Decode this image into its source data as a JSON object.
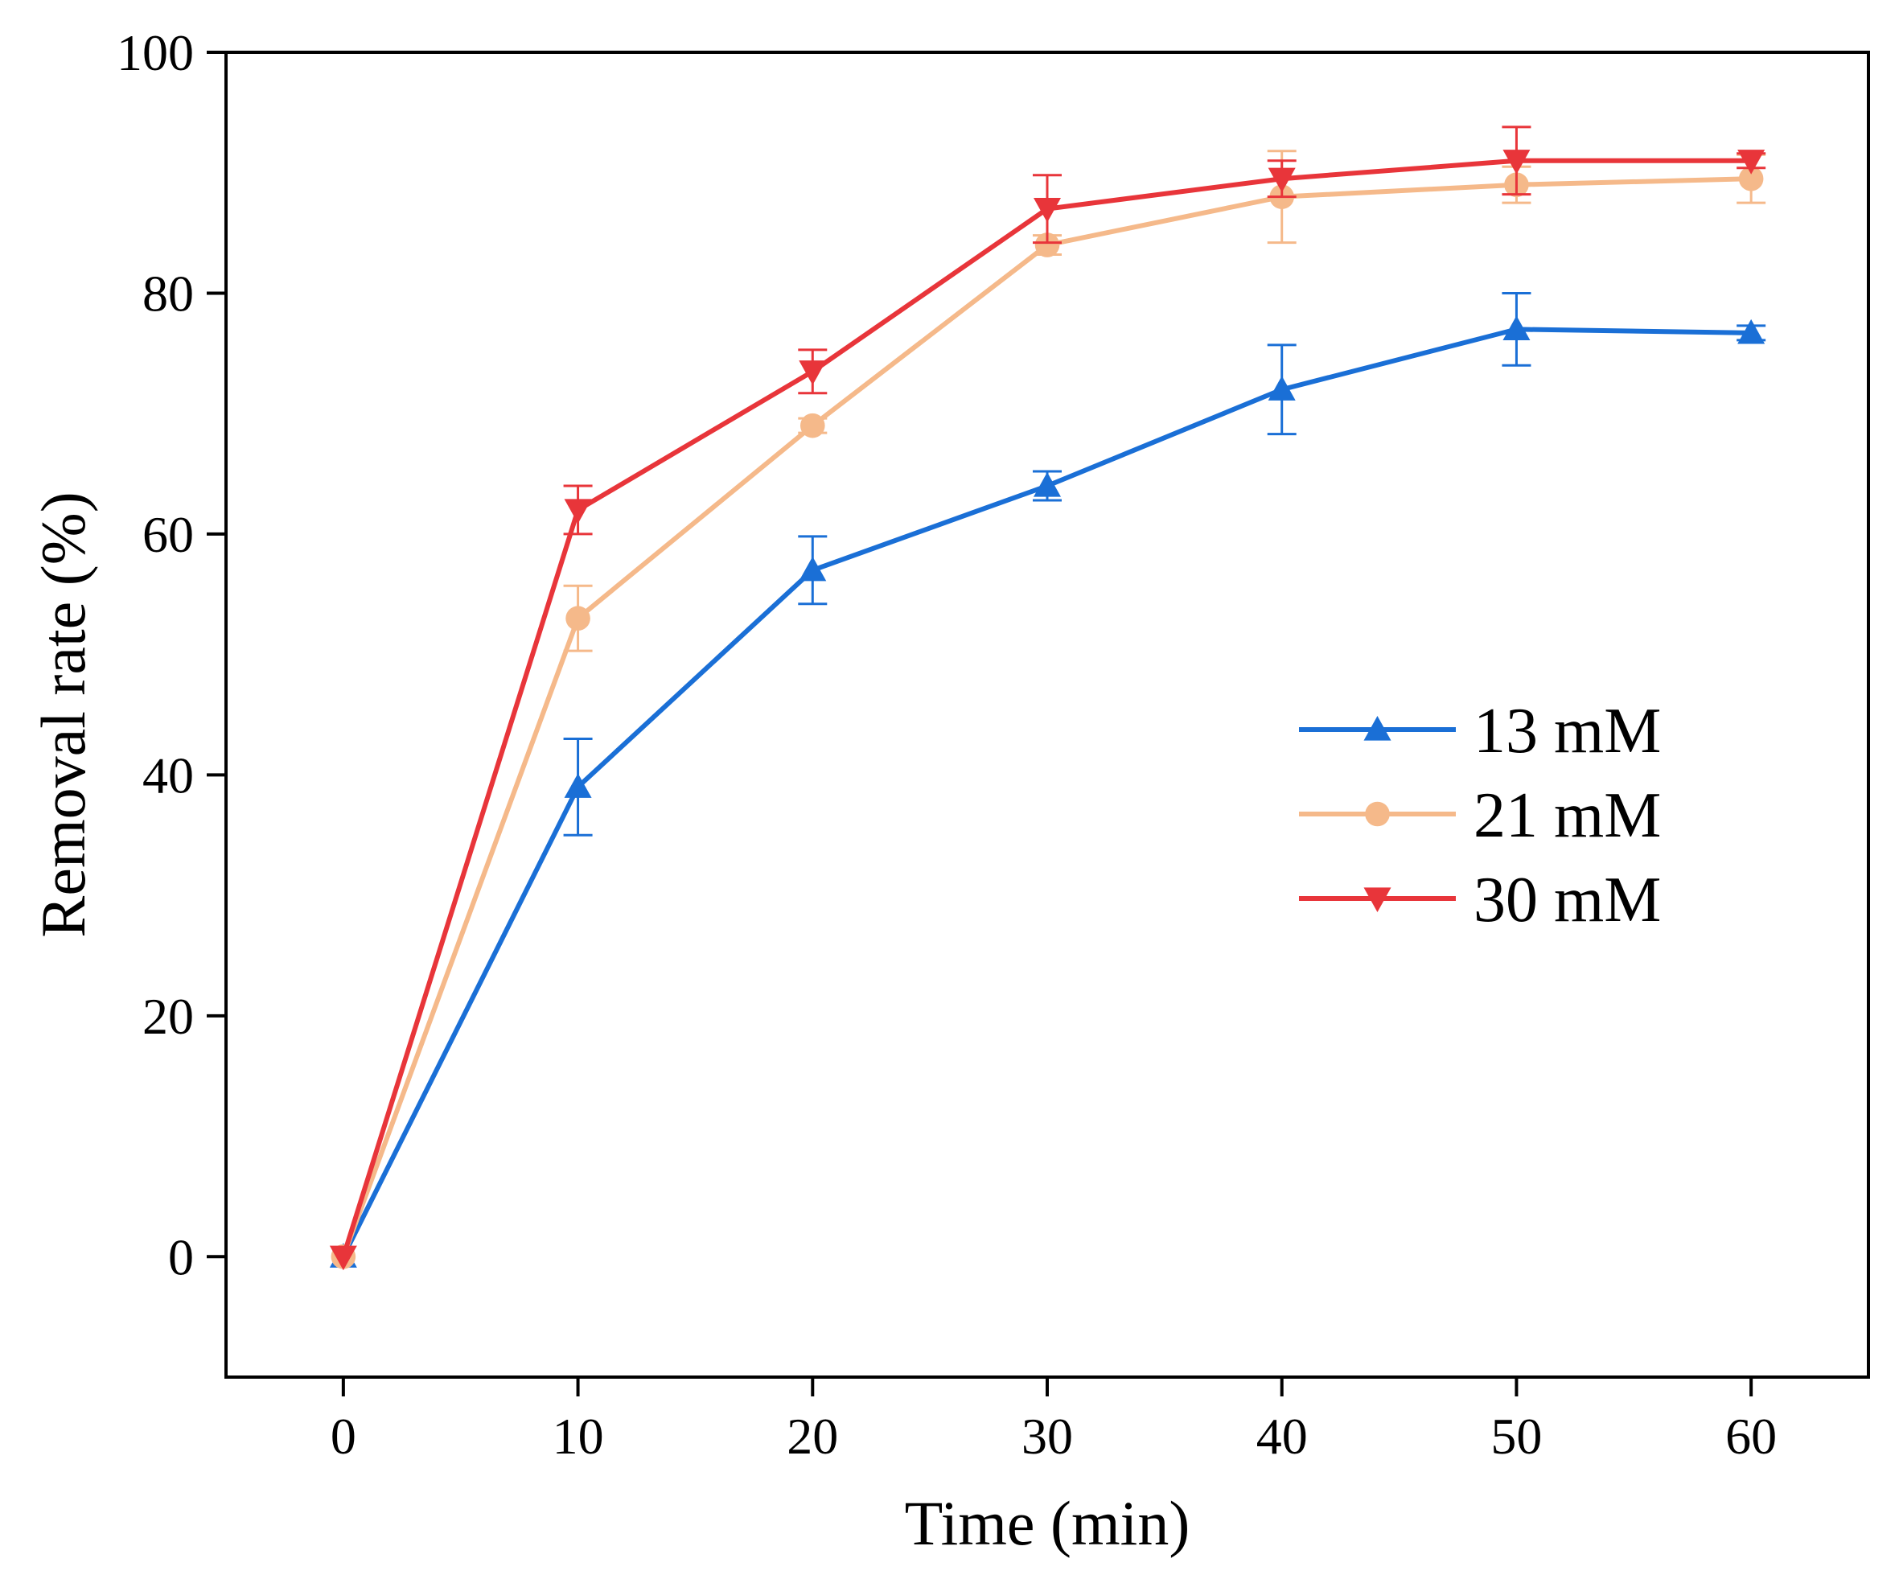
{
  "chart_data": {
    "type": "line",
    "title": "",
    "xlabel": "Time (min)",
    "ylabel": "Removal rate (%)",
    "xlim": [
      -5,
      65
    ],
    "ylim": [
      -10,
      100
    ],
    "xticks": [
      0,
      10,
      20,
      30,
      40,
      50,
      60
    ],
    "yticks": [
      0,
      20,
      40,
      60,
      80,
      100
    ],
    "x": [
      0,
      10,
      20,
      30,
      40,
      50,
      60
    ],
    "legend_position": "center-right",
    "series": [
      {
        "name": "13 mM",
        "color": "#1a6fd6",
        "marker": "triangle-up",
        "values": [
          0,
          39,
          57,
          64,
          72,
          77,
          76.7
        ],
        "errors": [
          0,
          4,
          2.8,
          1.2,
          3.7,
          3.0,
          0.6
        ]
      },
      {
        "name": "21 mM",
        "color": "#f5b98a",
        "marker": "circle",
        "values": [
          0,
          53,
          69,
          84,
          88,
          89,
          89.5
        ],
        "errors": [
          0,
          2.7,
          0.6,
          0.8,
          3.8,
          1.5,
          2.0
        ]
      },
      {
        "name": "30 mM",
        "color": "#e8353a",
        "marker": "triangle-down",
        "values": [
          0,
          62,
          73.5,
          87,
          89.5,
          91,
          91
        ],
        "errors": [
          0,
          2.0,
          1.8,
          2.8,
          1.5,
          2.8,
          0.6
        ]
      }
    ]
  }
}
